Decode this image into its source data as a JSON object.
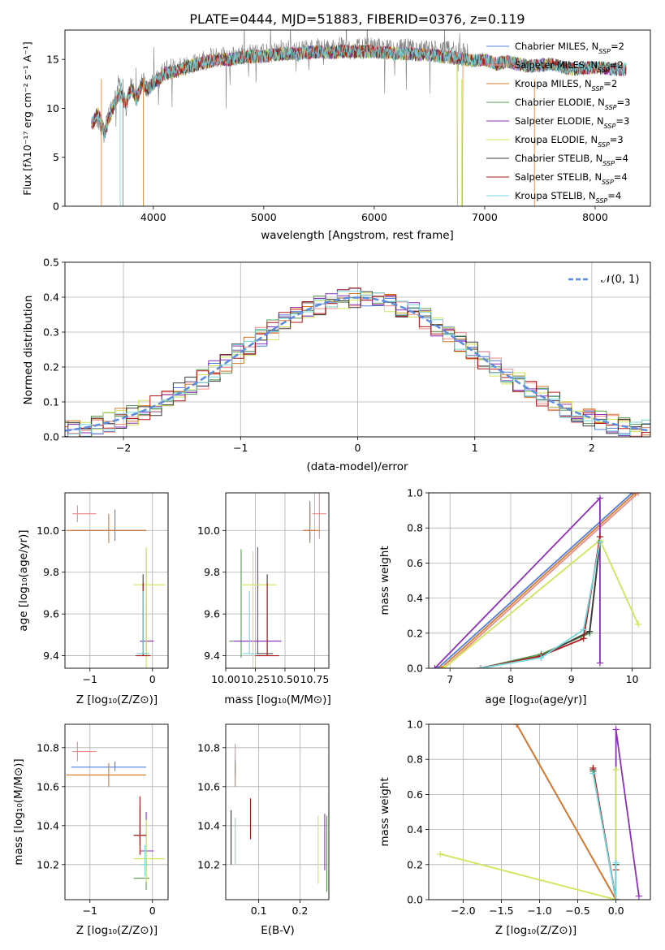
{
  "figure": {
    "title": "PLATE=0444, MJD=51883, FIBERID=0376, z=0.119"
  },
  "colors": {
    "Chabrier MILES": "#4f7fd6",
    "Salpeter MILES": "#f08a86",
    "Kroupa MILES": "#d67a2a",
    "Chabrier ELODIE": "#5b9a55",
    "Salpeter ELODIE": "#8e2ebc",
    "Kroupa ELODIE": "#cfe55a",
    "Chabrier STELIB": "#3a3a3a",
    "Salpeter STELIB": "#b01818",
    "Kroupa STELIB": "#76d7dc",
    "gaussian": "#5b8ce0",
    "grid": "#b0b0b0"
  },
  "legend_entries": [
    {
      "label": "Chabrier MILES, N",
      "sub": "SSP",
      "tail": "=2",
      "color": "#4f7fd6"
    },
    {
      "label": "Salpeter MILES, N",
      "sub": "SSP",
      "tail": "=2",
      "color": "#f08a86"
    },
    {
      "label": "Kroupa MILES, N",
      "sub": "SSP",
      "tail": "=2",
      "color": "#d67a2a"
    },
    {
      "label": "Chabrier ELODIE, N",
      "sub": "SSP",
      "tail": "=3",
      "color": "#5b9a55"
    },
    {
      "label": "Salpeter ELODIE, N",
      "sub": "SSP",
      "tail": "=3",
      "color": "#8e2ebc"
    },
    {
      "label": "Kroupa ELODIE, N",
      "sub": "SSP",
      "tail": "=3",
      "color": "#cfe55a"
    },
    {
      "label": "Chabrier STELIB, N",
      "sub": "SSP",
      "tail": "=4",
      "color": "#3a3a3a"
    },
    {
      "label": "Salpeter STELIB, N",
      "sub": "SSP",
      "tail": "=4",
      "color": "#b01818"
    },
    {
      "label": "Kroupa STELIB, N",
      "sub": "SSP",
      "tail": "=4",
      "color": "#76d7dc"
    }
  ],
  "chart_data": [
    {
      "id": "spectrum",
      "type": "line",
      "xlabel": "wavelength [Angstrom, rest frame]",
      "ylabel": "Flux [fλ10⁻¹⁷ erg cm⁻² s⁻¹ A⁻¹]",
      "xlim": [
        3200,
        8500
      ],
      "ylim": [
        0,
        18
      ],
      "xticks": [
        4000,
        5000,
        6000,
        7000,
        8000
      ],
      "yticks": [
        0,
        5,
        10,
        15
      ],
      "data_gray": {
        "x": [
          3480,
          3520,
          3560,
          3600,
          3650,
          3700,
          3750,
          3800,
          3850,
          3900,
          3950,
          4000,
          4050,
          4100,
          4200,
          4300,
          4400,
          4500,
          4600,
          4700,
          4800,
          4900,
          5000,
          5100,
          5200,
          5300,
          5400,
          5500,
          5600,
          5700,
          5800,
          5900,
          6000,
          6100,
          6200,
          6300,
          6400,
          6500,
          6600,
          6700,
          6800,
          6850
        ],
        "y": [
          9.0,
          8.0,
          7.5,
          9.5,
          11.0,
          13.0,
          10.0,
          12.5,
          11.0,
          13.0,
          12.0,
          12.5,
          13.0,
          14.0,
          14.0,
          14.5,
          14.8,
          15.0,
          15.3,
          15.2,
          15.5,
          15.6,
          15.5,
          15.8,
          16.0,
          15.8,
          16.0,
          16.2,
          16.0,
          16.3,
          16.0,
          16.1,
          16.2,
          16.0,
          15.9,
          16.1,
          15.8,
          16.0,
          15.7,
          15.9,
          15.6,
          15.5
        ]
      },
      "model": {
        "x": [
          3450,
          3500,
          3560,
          3600,
          3650,
          3700,
          3750,
          3800,
          3850,
          3900,
          3950,
          4000,
          4050,
          4100,
          4200,
          4300,
          4400,
          4500,
          4600,
          4700,
          4800,
          4900,
          5000,
          5100,
          5200,
          5300,
          5400,
          5500,
          5600,
          5700,
          5800,
          5900,
          6000,
          6100,
          6200,
          6300,
          6400,
          6500,
          6600,
          6700,
          6800,
          6900,
          7000,
          7100,
          7200,
          7400,
          7600,
          7800,
          8000,
          8200
        ],
        "y": [
          8.5,
          9.5,
          7.5,
          9.0,
          10.5,
          11.5,
          10.5,
          12.0,
          11.0,
          12.5,
          12.0,
          12.5,
          13.0,
          13.5,
          13.8,
          14.2,
          14.5,
          14.8,
          15.0,
          15.0,
          15.2,
          15.3,
          15.3,
          15.5,
          15.6,
          15.6,
          15.7,
          15.8,
          15.7,
          15.8,
          15.8,
          15.8,
          15.8,
          15.7,
          15.6,
          15.6,
          15.5,
          15.5,
          15.3,
          15.2,
          15.0,
          14.9,
          15.0,
          14.5,
          14.8,
          14.3,
          14.5,
          14.0,
          14.2,
          14.0
        ]
      }
    },
    {
      "id": "residuals",
      "type": "line",
      "xlabel": "(data-model)/error",
      "ylabel": "Normed distribution",
      "xlim": [
        -2.5,
        2.5
      ],
      "ylim": [
        0,
        0.5
      ],
      "xticks": [
        -2,
        -1,
        0,
        1,
        2
      ],
      "yticks": [
        0.0,
        0.1,
        0.2,
        0.3,
        0.4,
        0.5
      ],
      "legend": "𝒩(0, 1)"
    },
    {
      "id": "age_vs_Z",
      "type": "scatter",
      "xlabel": "Z [log₁₀(Z/Z⊙)]",
      "ylabel": "age  [log₁₀(age/yr)]",
      "xlim": [
        -1.4,
        0.25
      ],
      "ylim": [
        9.34,
        10.18
      ],
      "xticks": [
        -1,
        0
      ],
      "yticks": [
        9.4,
        9.6,
        9.8,
        10.0
      ],
      "points": [
        {
          "x": -0.6,
          "y": 10.0,
          "xerr": [
            0.7,
            0.5
          ],
          "yerr": [
            0.05,
            0.1
          ],
          "c": "#4f7fd6"
        },
        {
          "x": -1.2,
          "y": 10.08,
          "xerr": [
            0.08,
            0.3
          ],
          "yerr": [
            0.04,
            0.04
          ],
          "c": "#f08a86"
        },
        {
          "x": -0.7,
          "y": 10.0,
          "xerr": [
            0.68,
            0.6
          ],
          "yerr": [
            0.06,
            0.08
          ],
          "c": "#d67a2a"
        },
        {
          "x": -0.1,
          "y": 9.41,
          "xerr": [
            0.05,
            0.05
          ],
          "yerr": [
            0.0,
            0.25
          ],
          "c": "#5b9a55"
        },
        {
          "x": -0.1,
          "y": 9.47,
          "xerr": [
            0.1,
            0.12
          ],
          "yerr": [
            0.05,
            0.44
          ],
          "c": "#8e2ebc"
        },
        {
          "x": -0.1,
          "y": 9.74,
          "xerr": [
            0.2,
            0.3
          ],
          "yerr": [
            0.4,
            0.18
          ],
          "c": "#cfe55a"
        },
        {
          "x": -0.15,
          "y": 9.41,
          "xerr": [
            0.1,
            0.08
          ],
          "yerr": [
            0.01,
            0.38
          ],
          "c": "#3a3a3a"
        },
        {
          "x": -0.15,
          "y": 9.4,
          "xerr": [
            0.12,
            0.12
          ],
          "yerr": [
            0.0,
            0.35
          ],
          "c": "#b01818"
        },
        {
          "x": -0.15,
          "y": 9.41,
          "xerr": [
            0.1,
            0.1
          ],
          "yerr": [
            0.0,
            0.3
          ],
          "c": "#76d7dc"
        }
      ]
    },
    {
      "id": "age_vs_mass",
      "type": "scatter",
      "xlabel": "mass [log₁₀(M/M⊙)]",
      "ylabel": "",
      "xlim": [
        10.0,
        10.87
      ],
      "ylim": [
        9.34,
        10.18
      ],
      "xticks": [
        10.0,
        10.25,
        10.5,
        10.75
      ],
      "xticklabels": [
        "10.00",
        "10.25",
        "10.50",
        "10.75"
      ],
      "yticks": [
        9.4,
        9.6,
        9.8,
        10.0
      ],
      "points": [
        {
          "x": 10.71,
          "y": 10.0,
          "xerr": [
            0.04,
            0.05
          ],
          "yerr": [
            0.05,
            0.14
          ],
          "c": "#4f7fd6"
        },
        {
          "x": 10.79,
          "y": 10.08,
          "xerr": [
            0.06,
            0.06
          ],
          "yerr": [
            0.12,
            0.1
          ],
          "c": "#f08a86"
        },
        {
          "x": 10.71,
          "y": 10.0,
          "xerr": [
            0.06,
            0.08
          ],
          "yerr": [
            0.06,
            0.13
          ],
          "c": "#d67a2a"
        },
        {
          "x": 10.13,
          "y": 9.47,
          "xerr": [
            0.1,
            0.25
          ],
          "yerr": [
            0.08,
            0.44
          ],
          "c": "#5b9a55"
        },
        {
          "x": 10.27,
          "y": 9.47,
          "xerr": [
            0.2,
            0.2
          ],
          "yerr": [
            0.06,
            0.45
          ],
          "c": "#8e2ebc"
        },
        {
          "x": 10.23,
          "y": 9.74,
          "xerr": [
            0.1,
            0.2
          ],
          "yerr": [
            0.4,
            0.16
          ],
          "c": "#cfe55a"
        },
        {
          "x": 10.35,
          "y": 9.41,
          "xerr": [
            0.12,
            0.05
          ],
          "yerr": [
            0.01,
            0.38
          ],
          "c": "#3a3a3a"
        },
        {
          "x": 10.35,
          "y": 9.4,
          "xerr": [
            0.1,
            0.1
          ],
          "yerr": [
            0.0,
            0.35
          ],
          "c": "#b01818"
        },
        {
          "x": 10.2,
          "y": 9.41,
          "xerr": [
            0.06,
            0.06
          ],
          "yerr": [
            0.0,
            0.3
          ],
          "c": "#76d7dc"
        }
      ]
    },
    {
      "id": "mw_vs_age",
      "type": "line",
      "xlabel": "age  [log₁₀(age/yr)]",
      "ylabel": "mass weight",
      "xlim": [
        6.65,
        10.3
      ],
      "ylim": [
        0,
        1
      ],
      "xticks": [
        7,
        8,
        9,
        10
      ],
      "yticks": [
        0.0,
        0.2,
        0.4,
        0.6,
        0.8,
        1.0
      ],
      "series": [
        {
          "c": "#4f7fd6",
          "x": [
            6.8,
            10.0
          ],
          "y": [
            0.0,
            1.0
          ]
        },
        {
          "c": "#f08a86",
          "x": [
            6.9,
            10.1
          ],
          "y": [
            0.0,
            1.0
          ]
        },
        {
          "c": "#d67a2a",
          "x": [
            6.85,
            10.05
          ],
          "y": [
            0.0,
            1.0
          ]
        },
        {
          "c": "#8e2ebc",
          "x": [
            6.75,
            9.47,
            9.47
          ],
          "y": [
            0.0,
            0.97,
            0.03
          ]
        },
        {
          "c": "#cfe55a",
          "x": [
            6.9,
            9.47,
            10.1
          ],
          "y": [
            0.0,
            0.73,
            0.25
          ]
        },
        {
          "c": "#5b9a55",
          "x": [
            7.5,
            8.5,
            9.3,
            9.47
          ],
          "y": [
            0.0,
            0.08,
            0.2,
            0.72
          ]
        },
        {
          "c": "#3a3a3a",
          "x": [
            7.5,
            8.5,
            9.3,
            9.47
          ],
          "y": [
            0.0,
            0.07,
            0.21,
            0.72
          ]
        },
        {
          "c": "#b01818",
          "x": [
            7.5,
            8.5,
            9.2,
            9.47
          ],
          "y": [
            0.0,
            0.07,
            0.17,
            0.75
          ]
        },
        {
          "c": "#76d7dc",
          "x": [
            7.5,
            8.5,
            9.2,
            9.47
          ],
          "y": [
            0.0,
            0.06,
            0.22,
            0.72
          ]
        }
      ]
    },
    {
      "id": "mass_vs_Z",
      "type": "scatter",
      "xlabel": "Z [log₁₀(Z/Z⊙)]",
      "ylabel": "mass [log₁₀(M/M⊙)]",
      "xlim": [
        -1.4,
        0.25
      ],
      "ylim": [
        10.02,
        10.92
      ],
      "xticks": [
        -1,
        0
      ],
      "yticks": [
        10.2,
        10.4,
        10.6,
        10.8
      ],
      "points": [
        {
          "x": -0.6,
          "y": 10.7,
          "xerr": [
            0.7,
            0.5
          ],
          "yerr": [
            0.02,
            0.03
          ],
          "c": "#4f7fd6"
        },
        {
          "x": -1.2,
          "y": 10.78,
          "xerr": [
            0.08,
            0.3
          ],
          "yerr": [
            0.05,
            0.05
          ],
          "c": "#f08a86"
        },
        {
          "x": -0.7,
          "y": 10.66,
          "xerr": [
            0.68,
            0.6
          ],
          "yerr": [
            0.06,
            0.06
          ],
          "c": "#d67a2a"
        },
        {
          "x": -0.1,
          "y": 10.13,
          "xerr": [
            0.2,
            0.05
          ],
          "yerr": [
            0.06,
            0.1
          ],
          "c": "#5b9a55"
        },
        {
          "x": -0.1,
          "y": 10.27,
          "xerr": [
            0.1,
            0.12
          ],
          "yerr": [
            0.1,
            0.2
          ],
          "c": "#8e2ebc"
        },
        {
          "x": -0.1,
          "y": 10.23,
          "xerr": [
            0.2,
            0.3
          ],
          "yerr": [
            0.12,
            0.2
          ],
          "c": "#cfe55a"
        },
        {
          "x": -0.2,
          "y": 10.35,
          "xerr": [
            0.1,
            0.1
          ],
          "yerr": [
            0.05,
            0.15
          ],
          "c": "#3a3a3a"
        },
        {
          "x": -0.2,
          "y": 10.35,
          "xerr": [
            0.1,
            0.1
          ],
          "yerr": [
            0.1,
            0.2
          ],
          "c": "#b01818"
        },
        {
          "x": -0.12,
          "y": 10.2,
          "xerr": [
            0.06,
            0.06
          ],
          "yerr": [
            0.06,
            0.1
          ],
          "c": "#76d7dc"
        }
      ]
    },
    {
      "id": "mass_vs_ebv",
      "type": "scatter",
      "xlabel": "E(B-V)",
      "ylabel": "",
      "xlim": [
        0.02,
        0.27
      ],
      "ylim": [
        10.02,
        10.92
      ],
      "xticks": [
        0.1,
        0.2
      ],
      "yticks": [
        10.2,
        10.4,
        10.6,
        10.8
      ],
      "points": [
        {
          "x": 0.043,
          "y": 10.7,
          "yerr": [
            0.04,
            0.04
          ],
          "c": "#4f7fd6"
        },
        {
          "x": 0.043,
          "y": 10.78,
          "yerr": [
            0.05,
            0.04
          ],
          "c": "#f08a86"
        },
        {
          "x": 0.043,
          "y": 10.66,
          "yerr": [
            0.06,
            0.06
          ],
          "c": "#d67a2a"
        },
        {
          "x": 0.265,
          "y": 10.28,
          "yerr": [
            0.22,
            0.17
          ],
          "c": "#5b9a55"
        },
        {
          "x": 0.26,
          "y": 10.3,
          "yerr": [
            0.13,
            0.16
          ],
          "c": "#8e2ebc"
        },
        {
          "x": 0.244,
          "y": 10.27,
          "yerr": [
            0.17,
            0.18
          ],
          "c": "#cfe55a"
        },
        {
          "x": 0.033,
          "y": 10.35,
          "yerr": [
            0.15,
            0.13
          ],
          "c": "#3a3a3a"
        },
        {
          "x": 0.08,
          "y": 10.42,
          "yerr": [
            0.09,
            0.12
          ],
          "c": "#b01818"
        },
        {
          "x": 0.043,
          "y": 10.28,
          "yerr": [
            0.08,
            0.16
          ],
          "c": "#76d7dc"
        }
      ]
    },
    {
      "id": "mw_vs_Z",
      "type": "line",
      "xlabel": "Z [log₁₀(Z/Z⊙)]",
      "ylabel": "mass weight",
      "xlim": [
        -2.45,
        0.45
      ],
      "ylim": [
        0,
        1
      ],
      "xticks": [
        -2.0,
        -1.5,
        -1.0,
        -0.5,
        0.0
      ],
      "xticklabels": [
        "−2.0",
        "−1.5",
        "−1.0",
        "−0.5",
        "0.0"
      ],
      "yticks": [
        0.0,
        0.2,
        0.4,
        0.6,
        0.8,
        1.0
      ],
      "series": [
        {
          "c": "#4f7fd6",
          "x": [
            -1.3,
            0.0
          ],
          "y": [
            1.0,
            0.0
          ]
        },
        {
          "c": "#f08a86",
          "x": [
            -1.3,
            0.0
          ],
          "y": [
            1.0,
            0.0
          ]
        },
        {
          "c": "#d67a2a",
          "x": [
            -1.3,
            0.0
          ],
          "y": [
            1.0,
            0.0
          ]
        },
        {
          "c": "#8e2ebc",
          "x": [
            0.0,
            0.0,
            0.3
          ],
          "y": [
            0.0,
            0.97,
            0.02
          ]
        },
        {
          "c": "#cfe55a",
          "x": [
            -2.3,
            0.0,
            0.0
          ],
          "y": [
            0.26,
            0.0,
            0.74
          ]
        },
        {
          "c": "#5b9a55",
          "x": [
            -0.3,
            0.0,
            0.0
          ],
          "y": [
            0.73,
            0.0,
            0.2
          ]
        },
        {
          "c": "#3a3a3a",
          "x": [
            -0.3,
            0.0,
            0.0
          ],
          "y": [
            0.74,
            0.0,
            0.2
          ]
        },
        {
          "c": "#b01818",
          "x": [
            -0.3,
            0.0,
            0.0
          ],
          "y": [
            0.75,
            0.0,
            0.17
          ]
        },
        {
          "c": "#76d7dc",
          "x": [
            -0.3,
            0.0,
            0.0
          ],
          "y": [
            0.72,
            0.0,
            0.21
          ]
        }
      ]
    }
  ]
}
